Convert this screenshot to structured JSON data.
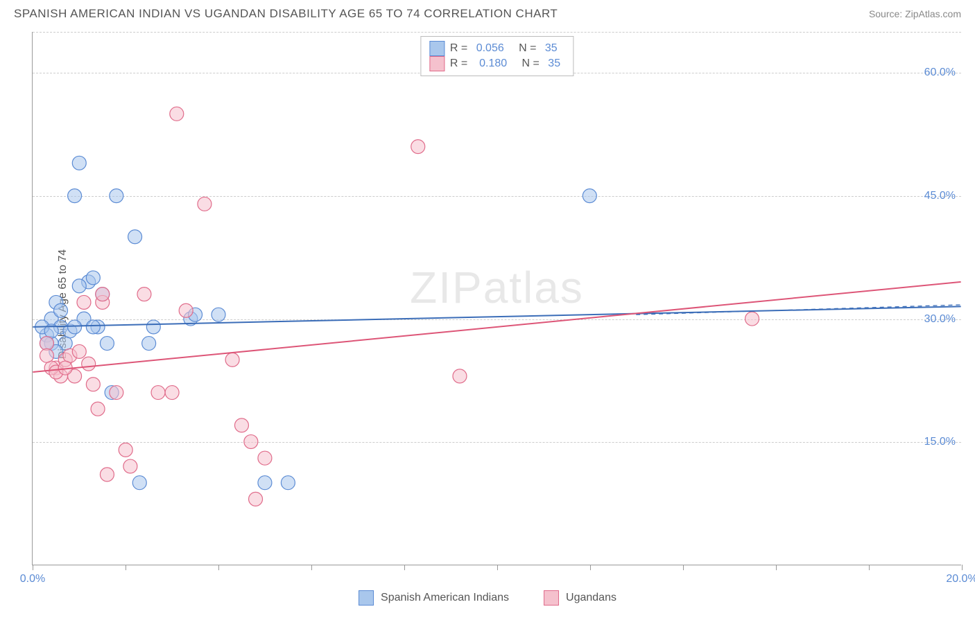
{
  "title": "SPANISH AMERICAN INDIAN VS UGANDAN DISABILITY AGE 65 TO 74 CORRELATION CHART",
  "source": "Source: ZipAtlas.com",
  "ylabel": "Disability Age 65 to 74",
  "watermark": "ZIPatlas",
  "chart": {
    "type": "scatter",
    "xlim": [
      0,
      20
    ],
    "ylim": [
      0,
      65
    ],
    "xticks": [
      0,
      2,
      4,
      6,
      8,
      10,
      12,
      14,
      16,
      18,
      20
    ],
    "xtick_labels_shown": [
      {
        "v": 0,
        "t": "0.0%"
      },
      {
        "v": 20,
        "t": "20.0%"
      }
    ],
    "yticks": [
      {
        "v": 15,
        "t": "15.0%"
      },
      {
        "v": 30,
        "t": "30.0%"
      },
      {
        "v": 45,
        "t": "45.0%"
      },
      {
        "v": 60,
        "t": "60.0%"
      }
    ],
    "gridline_color": "#cccccc",
    "background_color": "#ffffff",
    "marker_radius": 10,
    "marker_alpha": 0.55,
    "marker_stroke_width": 1.2,
    "line_width": 2,
    "dash_line_width": 1.3
  },
  "series": [
    {
      "name": "Spanish American Indians",
      "color_fill": "#a9c7ec",
      "color_stroke": "#5b8bd4",
      "line_color": "#3b6db8",
      "R": "0.056",
      "N": "35",
      "trend": {
        "x0": 0,
        "y0": 29,
        "x1": 20,
        "y1": 31.5
      },
      "dash_trend": {
        "x0": 13,
        "y0": 30.5,
        "x1": 20,
        "y1": 31.7
      },
      "points": [
        {
          "x": 0.3,
          "y": 28
        },
        {
          "x": 0.5,
          "y": 32
        },
        {
          "x": 0.4,
          "y": 30
        },
        {
          "x": 0.6,
          "y": 29
        },
        {
          "x": 0.7,
          "y": 27
        },
        {
          "x": 0.9,
          "y": 45
        },
        {
          "x": 1.0,
          "y": 49
        },
        {
          "x": 1.2,
          "y": 34.5
        },
        {
          "x": 1.3,
          "y": 35
        },
        {
          "x": 1.5,
          "y": 33
        },
        {
          "x": 1.6,
          "y": 27
        },
        {
          "x": 1.7,
          "y": 21
        },
        {
          "x": 1.8,
          "y": 45
        },
        {
          "x": 2.2,
          "y": 40
        },
        {
          "x": 1.4,
          "y": 29
        },
        {
          "x": 2.5,
          "y": 27
        },
        {
          "x": 2.6,
          "y": 29
        },
        {
          "x": 2.3,
          "y": 10
        },
        {
          "x": 3.4,
          "y": 30
        },
        {
          "x": 3.5,
          "y": 30.5
        },
        {
          "x": 4.0,
          "y": 30.5
        },
        {
          "x": 5.0,
          "y": 10
        },
        {
          "x": 5.5,
          "y": 10
        },
        {
          "x": 12.0,
          "y": 45
        },
        {
          "x": 0.4,
          "y": 27
        },
        {
          "x": 0.5,
          "y": 26
        },
        {
          "x": 0.8,
          "y": 28.5
        },
        {
          "x": 1.0,
          "y": 34
        },
        {
          "x": 0.3,
          "y": 27
        },
        {
          "x": 0.2,
          "y": 29
        },
        {
          "x": 0.4,
          "y": 28.5
        },
        {
          "x": 1.1,
          "y": 30
        },
        {
          "x": 1.3,
          "y": 29
        },
        {
          "x": 0.6,
          "y": 31
        },
        {
          "x": 0.9,
          "y": 29
        }
      ]
    },
    {
      "name": "Ugandans",
      "color_fill": "#f5c1cd",
      "color_stroke": "#e06b8a",
      "line_color": "#dd5577",
      "R": "0.180",
      "N": "35",
      "trend": {
        "x0": 0,
        "y0": 23.5,
        "x1": 20,
        "y1": 34.5
      },
      "points": [
        {
          "x": 0.3,
          "y": 27
        },
        {
          "x": 0.5,
          "y": 24
        },
        {
          "x": 0.7,
          "y": 25
        },
        {
          "x": 0.6,
          "y": 23
        },
        {
          "x": 0.8,
          "y": 25.5
        },
        {
          "x": 0.9,
          "y": 23
        },
        {
          "x": 1.1,
          "y": 32
        },
        {
          "x": 1.3,
          "y": 22
        },
        {
          "x": 1.5,
          "y": 32
        },
        {
          "x": 1.5,
          "y": 33
        },
        {
          "x": 1.8,
          "y": 21
        },
        {
          "x": 1.4,
          "y": 19
        },
        {
          "x": 2.0,
          "y": 14
        },
        {
          "x": 2.1,
          "y": 12
        },
        {
          "x": 2.4,
          "y": 33
        },
        {
          "x": 2.7,
          "y": 21
        },
        {
          "x": 3.0,
          "y": 21
        },
        {
          "x": 3.1,
          "y": 55
        },
        {
          "x": 3.7,
          "y": 44
        },
        {
          "x": 3.3,
          "y": 31
        },
        {
          "x": 4.3,
          "y": 25
        },
        {
          "x": 4.5,
          "y": 17
        },
        {
          "x": 4.7,
          "y": 15
        },
        {
          "x": 4.8,
          "y": 8
        },
        {
          "x": 8.3,
          "y": 51
        },
        {
          "x": 9.2,
          "y": 23
        },
        {
          "x": 15.5,
          "y": 30
        },
        {
          "x": 1.2,
          "y": 24.5
        },
        {
          "x": 0.4,
          "y": 24
        },
        {
          "x": 0.3,
          "y": 25.5
        },
        {
          "x": 0.5,
          "y": 23.5
        },
        {
          "x": 0.7,
          "y": 24
        },
        {
          "x": 1.0,
          "y": 26
        },
        {
          "x": 1.6,
          "y": 11
        },
        {
          "x": 5.0,
          "y": 13
        }
      ]
    }
  ],
  "legend_top": {
    "rows": [
      {
        "swatch_fill": "#a9c7ec",
        "swatch_stroke": "#5b8bd4",
        "r_lbl": "R = ",
        "r_val": "0.056",
        "n_lbl": "   N = ",
        "n_val": "35"
      },
      {
        "swatch_fill": "#f5c1cd",
        "swatch_stroke": "#e06b8a",
        "r_lbl": "R =  ",
        "r_val": "0.180",
        "n_lbl": "   N = ",
        "n_val": "35"
      }
    ]
  },
  "legend_bottom": [
    {
      "swatch_fill": "#a9c7ec",
      "swatch_stroke": "#5b8bd4",
      "label": "Spanish American Indians"
    },
    {
      "swatch_fill": "#f5c1cd",
      "swatch_stroke": "#e06b8a",
      "label": "Ugandans"
    }
  ]
}
